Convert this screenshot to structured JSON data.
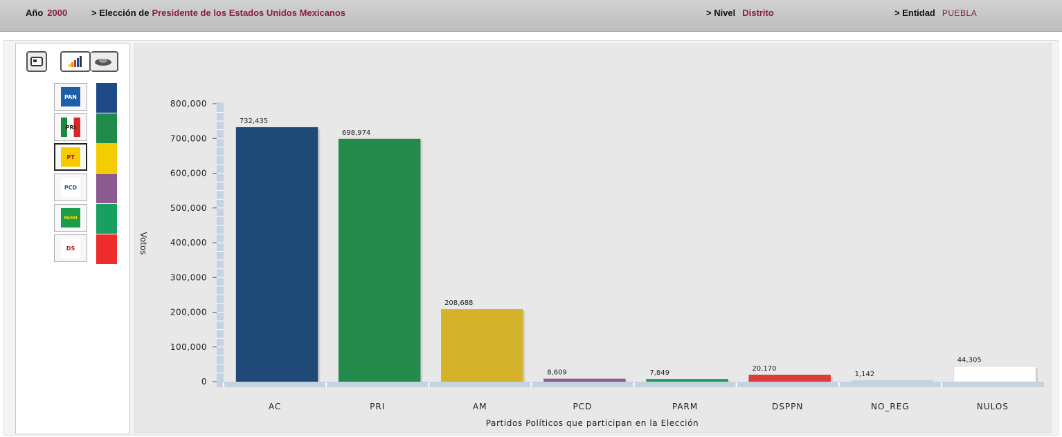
{
  "header": {
    "anio_label": "Año",
    "anio_value": "2000",
    "eleccion_label": "> Elección de",
    "eleccion_value": "Presidente de los Estados Unidos Mexicanos",
    "nivel_label": "> Nivel",
    "nivel_value": "Distrito",
    "entidad_label": "> Entidad",
    "entidad_value": "PUEBLA"
  },
  "view_buttons": [
    {
      "icon": "map-icon"
    },
    {
      "icon": "bar-chart-icon"
    },
    {
      "icon": "car-icon"
    }
  ],
  "parties": [
    {
      "logo": "pan-pvem-logo",
      "logo_text": "PAN",
      "color": "#1f4a8a"
    },
    {
      "logo": "pri-logo",
      "logo_text": "PRI",
      "color": "#1f8a4a"
    },
    {
      "logo": "prd-pt-coalition-logo",
      "logo_text": "PT",
      "color": "#f4cc00"
    },
    {
      "logo": "pcd-logo",
      "logo_text": "PCD",
      "color": "#8a5a90"
    },
    {
      "logo": "parm-logo",
      "logo_text": "PARM",
      "color": "#18a060"
    },
    {
      "logo": "dsppn-logo",
      "logo_text": "DS",
      "color": "#ee2c2c"
    }
  ],
  "chart_data": {
    "type": "bar",
    "categories": [
      "AC",
      "PRI",
      "AM",
      "PCD",
      "PARM",
      "DSPPN",
      "NO_REG",
      "NULOS"
    ],
    "values": [
      732435,
      698974,
      208688,
      8609,
      7849,
      20170,
      1142,
      44305
    ],
    "value_labels": [
      "732,435",
      "698,974",
      "208,688",
      "8,609",
      "7,849",
      "20,170",
      "1,142",
      "44,305"
    ],
    "colors": [
      "#1f4a78",
      "#238a4b",
      "#d4b22a",
      "#8e5a92",
      "#1c9c63",
      "#de3b3b",
      "#c3d2df",
      "#ffffff"
    ],
    "ylabel": "Votos",
    "xlabel": "Partidos Políticos que participan en la Elección",
    "ylim": [
      0,
      800000
    ],
    "yticks": [
      0,
      100000,
      200000,
      300000,
      400000,
      500000,
      600000,
      700000,
      800000
    ],
    "ytick_labels": [
      "0",
      "100,000",
      "200,000",
      "300,000",
      "400,000",
      "500,000",
      "600,000",
      "700,000",
      "800,000"
    ]
  }
}
